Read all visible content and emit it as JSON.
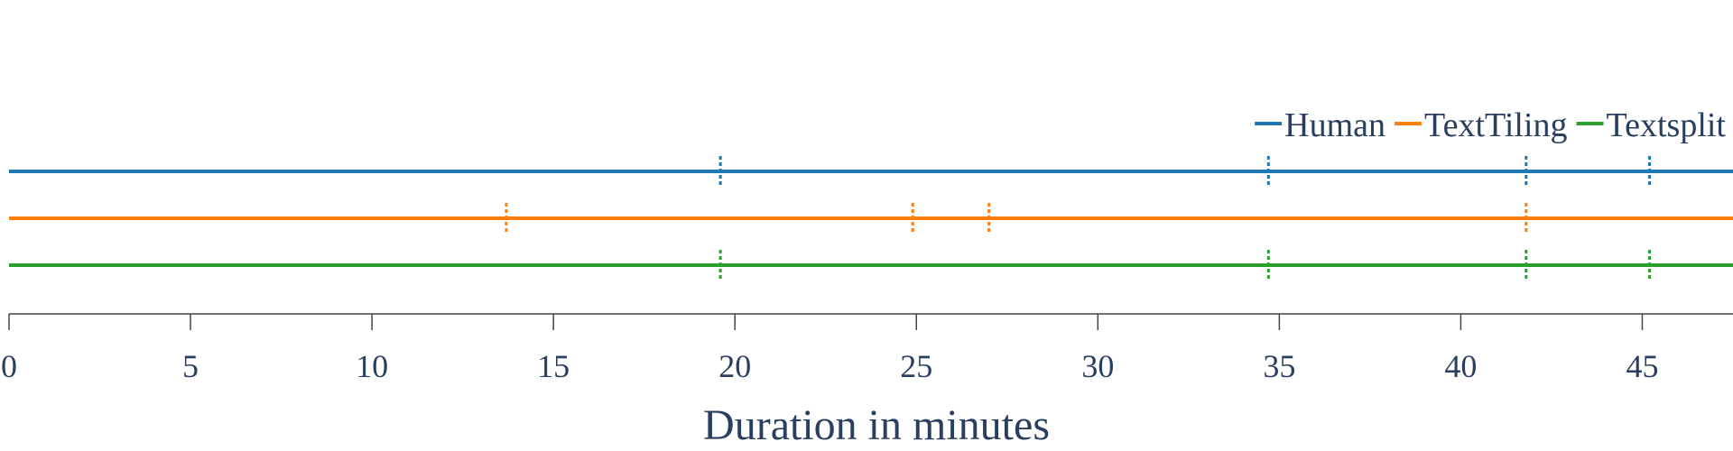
{
  "chart_data": {
    "type": "timeline",
    "xlabel": "Duration in minutes",
    "xlim": [
      0,
      47.5
    ],
    "xticks": [
      0,
      5,
      10,
      15,
      20,
      25,
      30,
      35,
      40,
      45
    ],
    "series": [
      {
        "name": "Human",
        "color": "#1f77b4",
        "boundaries": [
          19.6,
          34.7,
          41.8,
          45.2
        ]
      },
      {
        "name": "TextTiling",
        "color": "#ff7f0e",
        "boundaries": [
          13.7,
          24.9,
          27.0,
          41.8
        ]
      },
      {
        "name": "Textsplit",
        "color": "#2ca02c",
        "boundaries": [
          19.6,
          34.7,
          41.8,
          45.2
        ]
      }
    ],
    "legend_position": "top-right",
    "grid": false
  }
}
